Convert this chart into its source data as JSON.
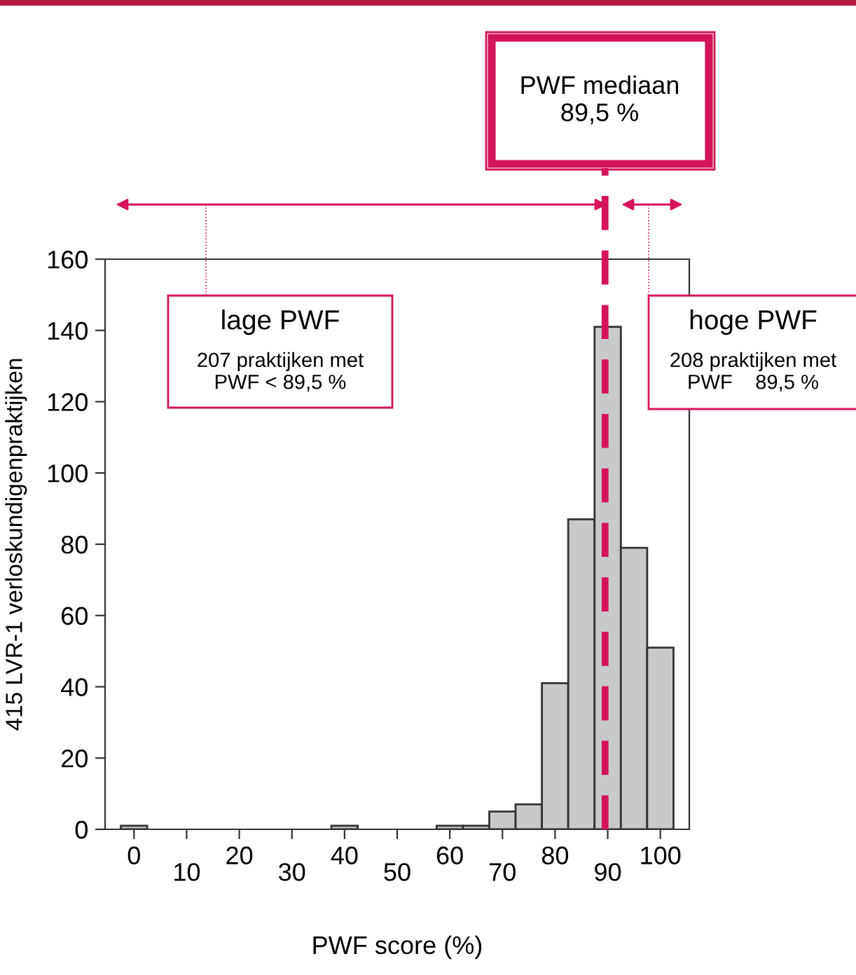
{
  "chart_data": {
    "type": "histogram",
    "xlabel": "PWF score (%)",
    "ylabel": "415 LVR-1 verloskundigenpraktijken",
    "bins": [
      -2.5,
      2.5,
      7.5,
      12.5,
      17.5,
      22.5,
      27.5,
      32.5,
      37.5,
      42.5,
      47.5,
      52.5,
      57.5,
      62.5,
      67.5,
      72.5,
      77.5,
      82.5,
      87.5,
      92.5,
      97.5,
      102.5
    ],
    "values": [
      1,
      0,
      0,
      0,
      0,
      0,
      0,
      0,
      1,
      0,
      0,
      0,
      1,
      1,
      5,
      7,
      41,
      87,
      141,
      79,
      51
    ],
    "color": "#c8c9cb",
    "xlim": [
      -5.5,
      105.5
    ],
    "xticks": [
      0,
      {
        "value": 10,
        "label": null
      },
      20,
      {
        "value": 30,
        "label": null
      },
      40,
      {
        "value": 50,
        "label": null
      },
      60,
      {
        "value": 70,
        "label": null
      },
      80,
      {
        "value": 90,
        "label": null
      },
      100
    ],
    "x2lim": [
      -5.5,
      105.5
    ],
    "x2ticks": [
      10,
      30,
      50,
      70,
      90
    ],
    "ylim": [
      0,
      160
    ],
    "yticks": [
      0,
      20,
      40,
      60,
      80,
      100,
      120,
      140,
      160
    ],
    "grid": false,
    "ref_lines": [
      {
        "axis": "x",
        "value": 89.5,
        "label": "PWF mediaan\n89,5 %",
        "color": "#d4145a",
        "line_style": "dashed"
      }
    ],
    "annotations": [
      "lage PWF",
      "207 praktijken met\nPWF < 89,5 %",
      "hoge PWF",
      "208 praktijken met\nPWF    89,5 %"
    ]
  }
}
